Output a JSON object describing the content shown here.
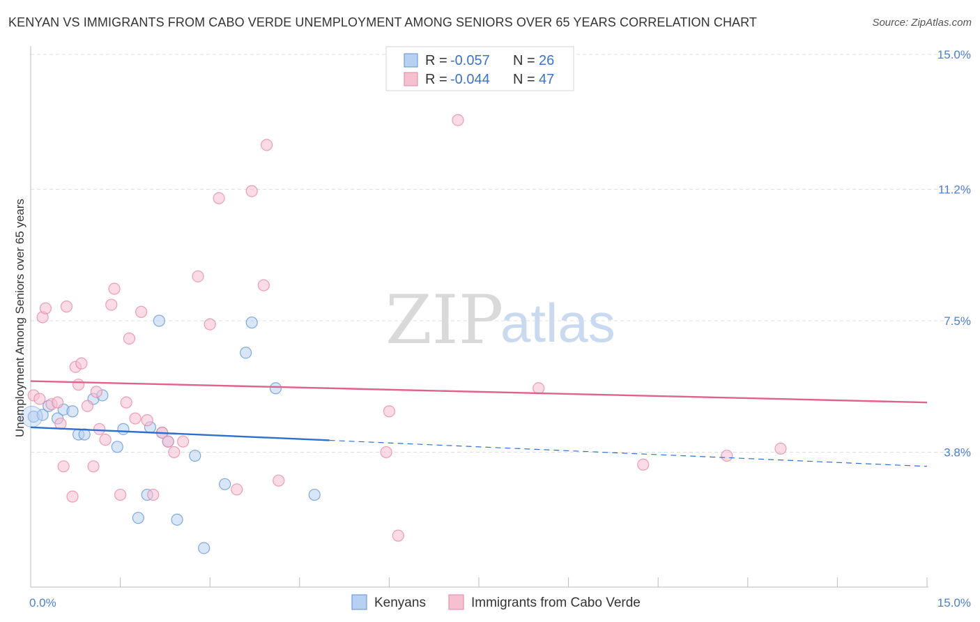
{
  "title": "KENYAN VS IMMIGRANTS FROM CABO VERDE UNEMPLOYMENT AMONG SENIORS OVER 65 YEARS CORRELATION CHART",
  "source": "Source: ZipAtlas.com",
  "watermark": {
    "zip": "ZIP",
    "atlas": "atlas"
  },
  "legend": {
    "rows": [
      {
        "r_label": "R = ",
        "r_value": "-0.057",
        "n_label": "N = ",
        "n_value": "26",
        "color": "#b8d1f3"
      },
      {
        "r_label": "R = ",
        "r_value": "-0.044",
        "n_label": "N = ",
        "n_value": "47",
        "color": "#f7c0d1"
      }
    ]
  },
  "bottom_legend": [
    {
      "label": "Kenyans",
      "color": "#b8d1f3"
    },
    {
      "label": "Immigrants from Cabo Verde",
      "color": "#f7c0d1"
    }
  ],
  "chart_data": {
    "type": "scatter",
    "title": "KENYAN VS IMMIGRANTS FROM CABO VERDE UNEMPLOYMENT AMONG SENIORS OVER 65 YEARS CORRELATION CHART",
    "xlabel": "",
    "ylabel": "Unemployment Among Seniors over 65 years",
    "xlim": [
      0,
      15
    ],
    "ylim": [
      0,
      15
    ],
    "x_tick_labels": [
      "0.0%",
      "15.0%"
    ],
    "y_ticks": [
      {
        "value": 3.8,
        "label": "3.8%"
      },
      {
        "value": 7.5,
        "label": "7.5%"
      },
      {
        "value": 11.2,
        "label": "11.2%"
      },
      {
        "value": 15.0,
        "label": "15.0%"
      }
    ],
    "grid": true,
    "legend_position": "top-center",
    "series": [
      {
        "name": "Kenyans",
        "color": "#b8d1f3",
        "edge": "#5b8fd6",
        "trend_color": "#2d6fcc",
        "trend": {
          "x0": 0,
          "y0": 4.5,
          "x1": 15,
          "y1": 3.4,
          "solid_until": 5
        },
        "points": [
          [
            0.05,
            4.8
          ],
          [
            0.2,
            4.85
          ],
          [
            0.3,
            5.1
          ],
          [
            0.45,
            4.75
          ],
          [
            0.55,
            5.0
          ],
          [
            0.7,
            4.95
          ],
          [
            0.8,
            4.3
          ],
          [
            0.9,
            4.3
          ],
          [
            1.05,
            5.3
          ],
          [
            1.2,
            5.4
          ],
          [
            1.45,
            3.95
          ],
          [
            1.55,
            4.45
          ],
          [
            1.8,
            1.95
          ],
          [
            1.95,
            2.6
          ],
          [
            2.0,
            4.5
          ],
          [
            2.2,
            4.35
          ],
          [
            2.3,
            4.1
          ],
          [
            2.45,
            1.9
          ],
          [
            2.75,
            3.7
          ],
          [
            2.9,
            1.1
          ],
          [
            3.25,
            2.9
          ],
          [
            3.6,
            6.6
          ],
          [
            3.7,
            7.45
          ],
          [
            4.1,
            5.6
          ],
          [
            4.75,
            2.6
          ],
          [
            2.15,
            7.5
          ]
        ]
      },
      {
        "name": "Immigrants from Cabo Verde",
        "color": "#f7c0d1",
        "edge": "#e8809f",
        "trend_color": "#e0628b",
        "trend": {
          "x0": 0,
          "y0": 5.8,
          "x1": 15,
          "y1": 5.2,
          "solid_until": 15
        },
        "points": [
          [
            0.05,
            5.4
          ],
          [
            0.15,
            5.3
          ],
          [
            0.2,
            7.6
          ],
          [
            0.25,
            7.85
          ],
          [
            0.35,
            5.15
          ],
          [
            0.45,
            5.2
          ],
          [
            0.5,
            4.6
          ],
          [
            0.55,
            3.4
          ],
          [
            0.6,
            7.9
          ],
          [
            0.7,
            2.55
          ],
          [
            0.75,
            6.2
          ],
          [
            0.8,
            5.7
          ],
          [
            0.85,
            6.3
          ],
          [
            0.95,
            5.1
          ],
          [
            1.05,
            3.4
          ],
          [
            1.1,
            5.5
          ],
          [
            1.15,
            4.45
          ],
          [
            1.25,
            4.15
          ],
          [
            1.35,
            7.95
          ],
          [
            1.4,
            8.4
          ],
          [
            1.5,
            2.6
          ],
          [
            1.6,
            5.2
          ],
          [
            1.65,
            7.0
          ],
          [
            1.75,
            4.75
          ],
          [
            1.85,
            7.75
          ],
          [
            1.95,
            4.7
          ],
          [
            2.05,
            2.6
          ],
          [
            2.2,
            4.35
          ],
          [
            2.3,
            4.1
          ],
          [
            2.4,
            3.8
          ],
          [
            2.55,
            4.1
          ],
          [
            2.8,
            8.75
          ],
          [
            3.0,
            7.4
          ],
          [
            3.15,
            10.95
          ],
          [
            3.45,
            2.75
          ],
          [
            3.7,
            11.15
          ],
          [
            3.9,
            8.5
          ],
          [
            3.95,
            12.45
          ],
          [
            4.15,
            3.0
          ],
          [
            5.95,
            3.8
          ],
          [
            6.0,
            4.95
          ],
          [
            6.15,
            1.45
          ],
          [
            7.15,
            13.15
          ],
          [
            8.5,
            5.6
          ],
          [
            10.25,
            3.45
          ],
          [
            11.65,
            3.7
          ],
          [
            12.55,
            3.9
          ]
        ]
      }
    ]
  }
}
